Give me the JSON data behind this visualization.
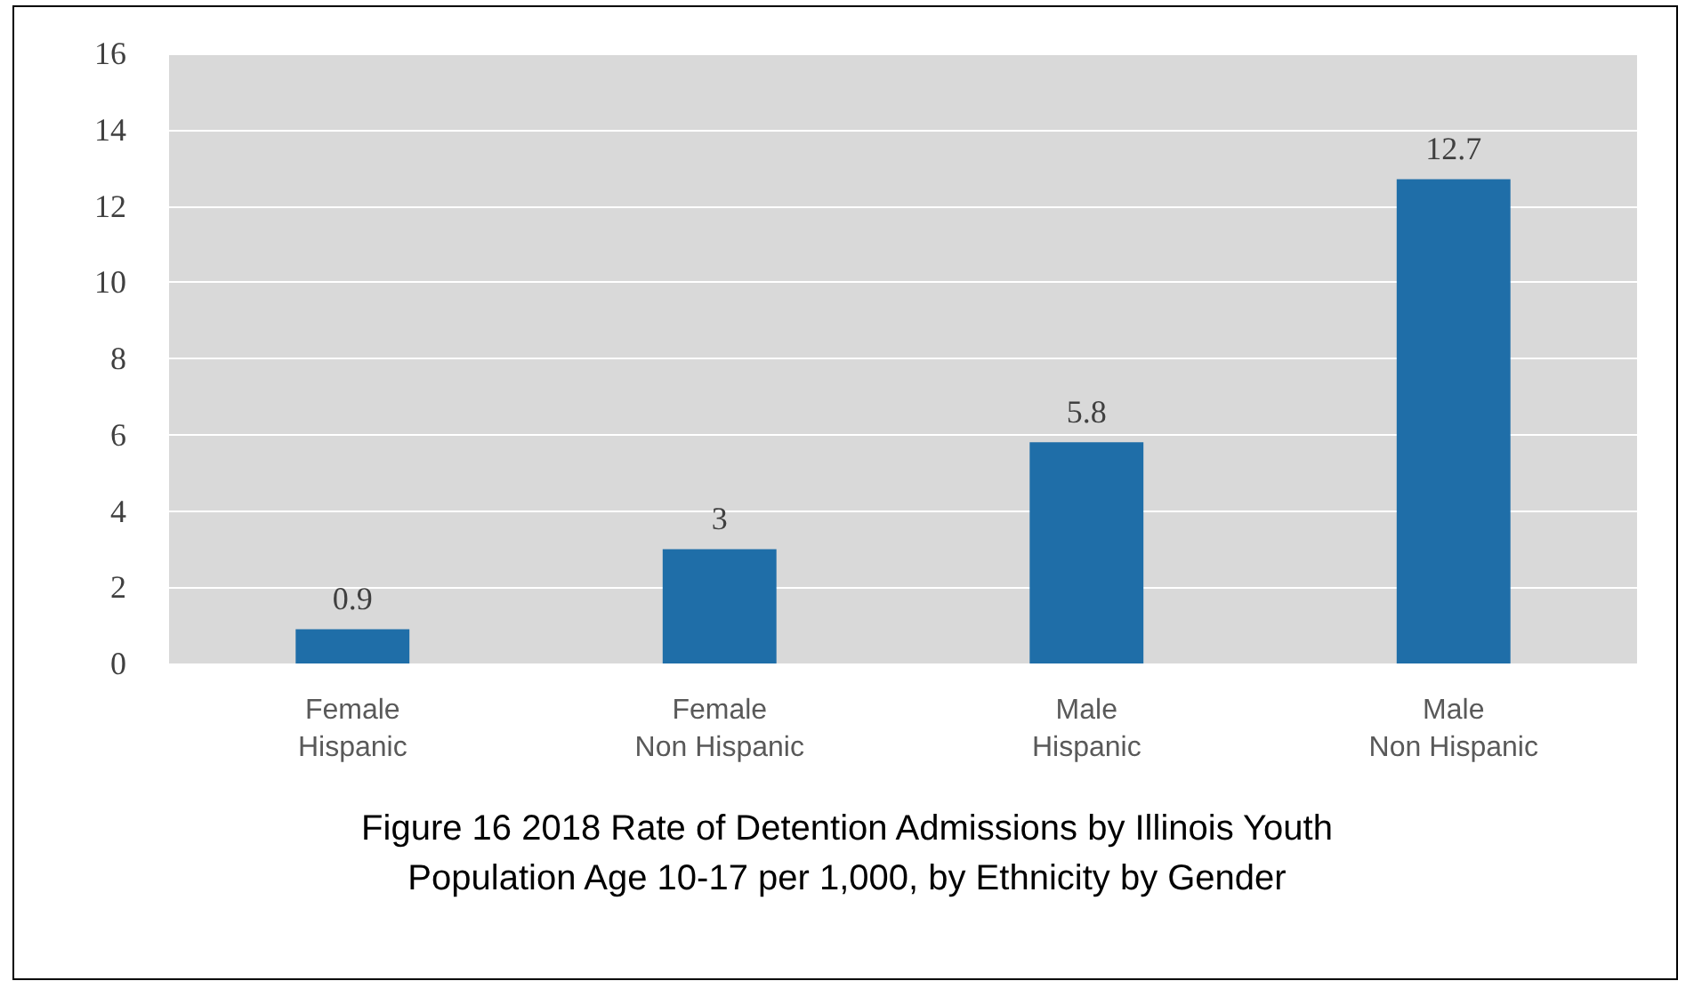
{
  "chart_data": {
    "type": "bar",
    "title": "Figure 16 2018 Rate of Detention Admissions by Illinois Youth\nPopulation Age 10-17 per 1,000, by Ethnicity by Gender",
    "categories": [
      "Female\nHispanic",
      "Female\nNon Hispanic",
      "Male\nHispanic",
      "Male\nNon Hispanic"
    ],
    "values": [
      0.9,
      3,
      5.8,
      12.7
    ],
    "color": "#1f6ea8",
    "ylim": [
      0,
      16
    ],
    "yticks": [
      0,
      2,
      4,
      6,
      8,
      10,
      12,
      14,
      16
    ],
    "grid": "y",
    "data_labels": true
  }
}
